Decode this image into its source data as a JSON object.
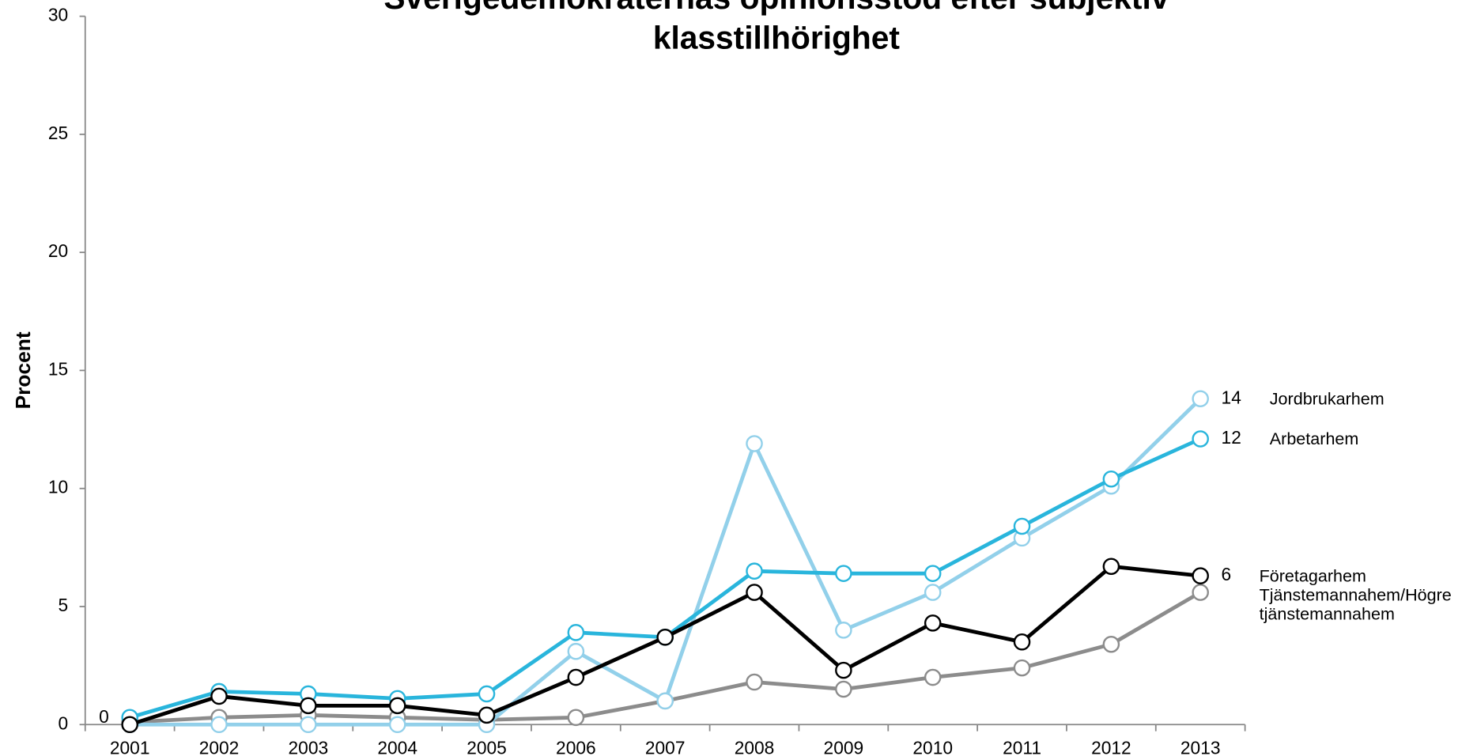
{
  "chart_data": {
    "type": "line",
    "title": "Sverigedemokraternas opinionsstöd efter subjektiv klasstillhörighet",
    "y_label": "Procent",
    "categories": [
      "2001",
      "2002",
      "2003",
      "2004",
      "2005",
      "2006",
      "2007",
      "2008",
      "2009",
      "2010",
      "2011",
      "2012",
      "2013"
    ],
    "ylim": [
      0,
      30
    ],
    "yticks": [
      0,
      5,
      10,
      15,
      20,
      25,
      30
    ],
    "grid": false,
    "series": [
      {
        "name": "Tjänstemannahem/Högre tjänstemannahem",
        "color": "#8c8c8c",
        "values": [
          0.1,
          0.3,
          0.4,
          0.3,
          0.2,
          0.3,
          1.0,
          1.8,
          1.5,
          2.0,
          2.4,
          3.4,
          5.6
        ]
      },
      {
        "name": "Jordbrukarhem",
        "color": "#92d0ea",
        "values": [
          0,
          0,
          0,
          0,
          0,
          3.1,
          1.0,
          11.9,
          4.0,
          5.6,
          7.9,
          10.1,
          13.8
        ],
        "value_labels": [
          null,
          null,
          null,
          null,
          null,
          null,
          null,
          null,
          null,
          null,
          null,
          null,
          "14"
        ]
      },
      {
        "name": "Arbetarhem",
        "color": "#29b5dc",
        "values": [
          0.3,
          1.4,
          1.3,
          1.1,
          1.3,
          3.9,
          3.7,
          6.5,
          6.4,
          6.4,
          8.4,
          10.4,
          12.1
        ],
        "value_labels": [
          null,
          null,
          null,
          null,
          null,
          null,
          null,
          null,
          null,
          null,
          null,
          null,
          "12"
        ]
      },
      {
        "name": "Företagarhem",
        "color": "#000000",
        "values": [
          0,
          1.2,
          0.8,
          0.8,
          0.4,
          2.0,
          3.7,
          5.6,
          2.3,
          4.3,
          3.5,
          6.7,
          6.3
        ],
        "value_labels": [
          "0",
          null,
          null,
          null,
          null,
          null,
          null,
          null,
          null,
          null,
          null,
          null,
          "6"
        ]
      }
    ]
  }
}
